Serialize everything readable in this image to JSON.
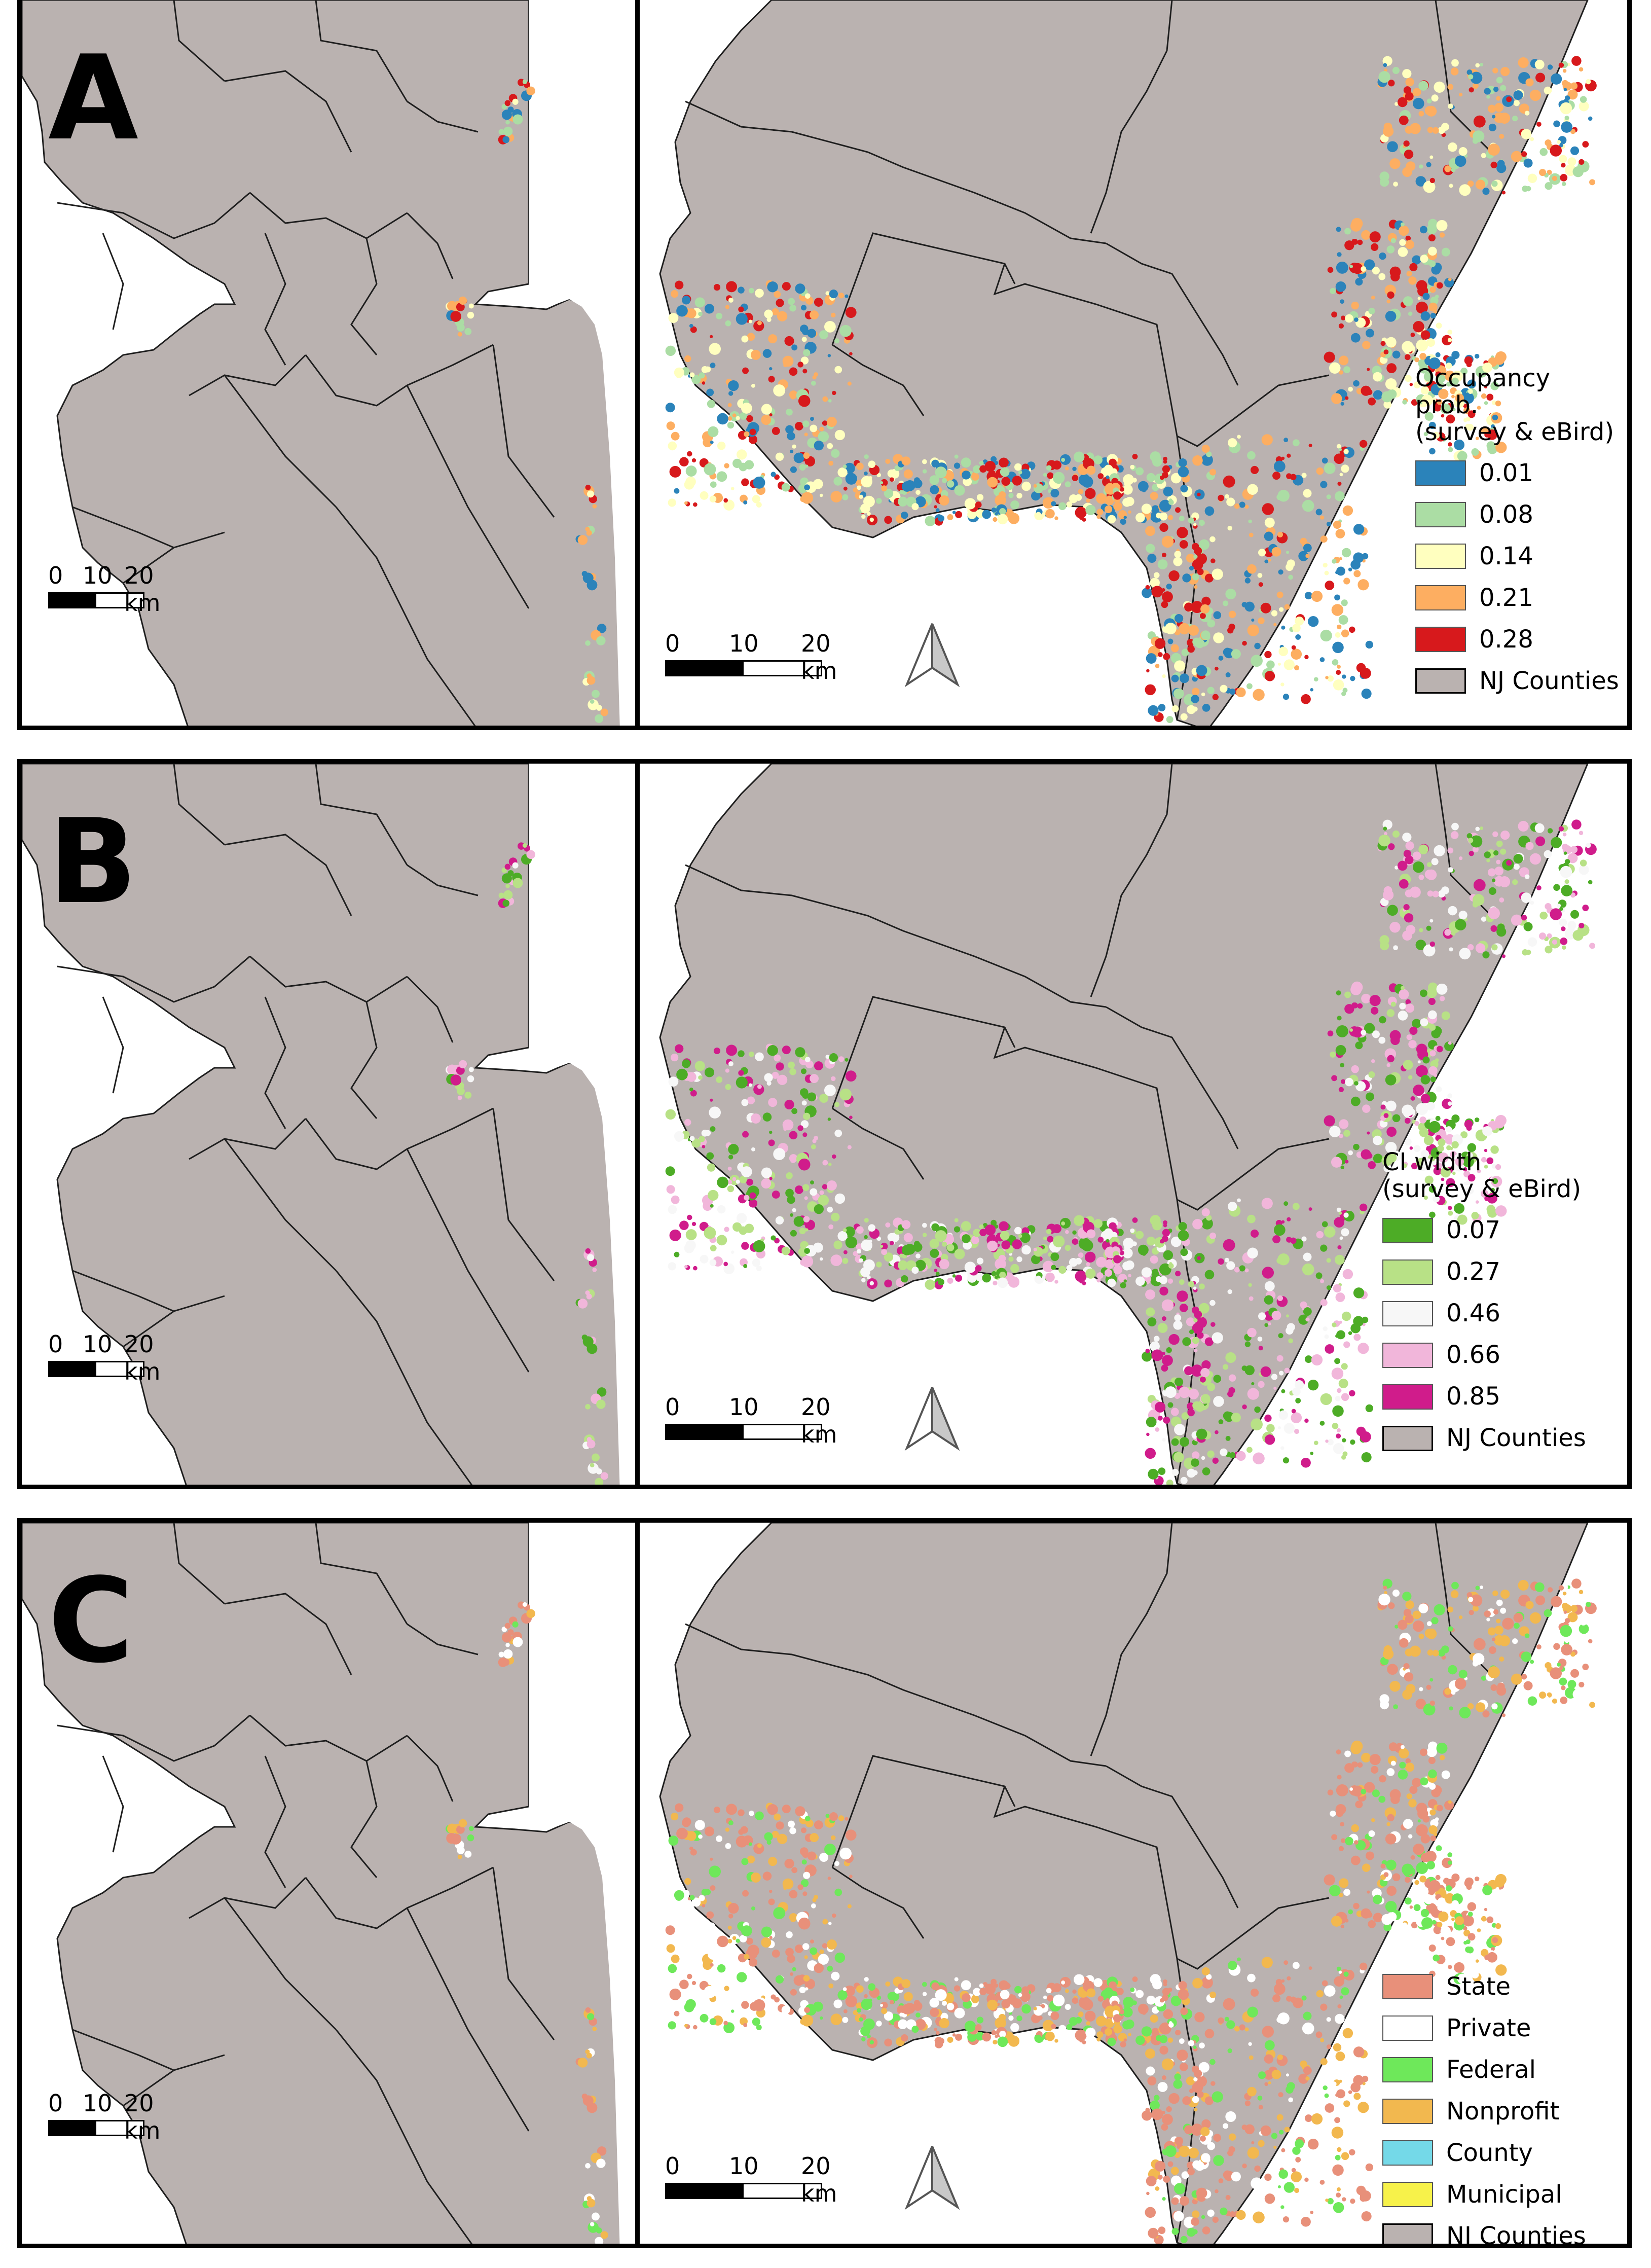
{
  "colors": {
    "land": "#bab2b0",
    "county_border": "#1e1e1e",
    "water": "#ffffff"
  },
  "scale_labels": [
    "0",
    "10",
    "20 km"
  ],
  "north_arrow": "north-arrow-icon",
  "panels": [
    {
      "letter": "A",
      "legend_title": "Occupancy\nprob.\n(survey & eBird)",
      "legend_items": [
        {
          "label": "0.01",
          "color": "#2b83ba"
        },
        {
          "label": "0.08",
          "color": "#abdda4"
        },
        {
          "label": "0.14",
          "color": "#ffffbf"
        },
        {
          "label": "0.21",
          "color": "#fdae61"
        },
        {
          "label": "0.28",
          "color": "#d7191c"
        },
        {
          "label": "NJ Counties",
          "color": "#bab2b0"
        }
      ],
      "marsh_palette": [
        "#2b83ba",
        "#abdda4",
        "#ffffbf",
        "#fdae61",
        "#d7191c"
      ]
    },
    {
      "letter": "B",
      "legend_title": "CI width\n(survey & eBird)",
      "legend_items": [
        {
          "label": "0.07",
          "color": "#4dac26"
        },
        {
          "label": "0.27",
          "color": "#b8e186"
        },
        {
          "label": "0.46",
          "color": "#f7f7f7"
        },
        {
          "label": "0.66",
          "color": "#f1b6da"
        },
        {
          "label": "0.85",
          "color": "#d01c8b"
        },
        {
          "label": "NJ Counties",
          "color": "#bab2b0"
        }
      ],
      "marsh_palette": [
        "#4dac26",
        "#b8e186",
        "#f7f7f7",
        "#f1b6da",
        "#d01c8b"
      ]
    },
    {
      "letter": "C",
      "legend_title": "",
      "legend_items": [
        {
          "label": "State",
          "color": "#e8907a"
        },
        {
          "label": "Private",
          "color": "#ffffff"
        },
        {
          "label": "Federal",
          "color": "#6ee85a"
        },
        {
          "label": "Nonprofit",
          "color": "#f2b84f"
        },
        {
          "label": "County",
          "color": "#74d9e8"
        },
        {
          "label": "Municipal",
          "color": "#f7f24a"
        },
        {
          "label": "NJ Counties",
          "color": "#bab2b0"
        }
      ],
      "marsh_palette": [
        "#e8907a",
        "#ffffff",
        "#6ee85a",
        "#f2b84f",
        "#e8907a"
      ]
    }
  ]
}
